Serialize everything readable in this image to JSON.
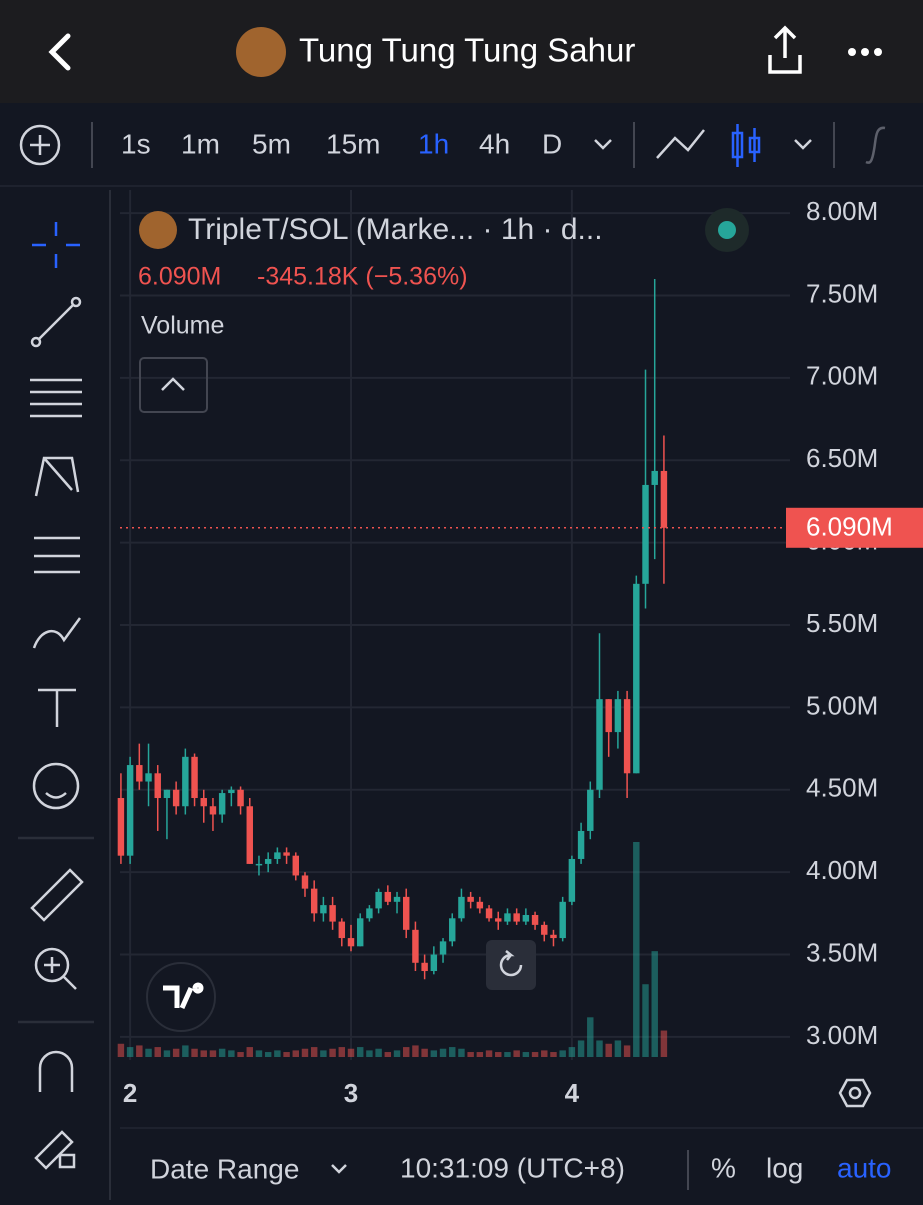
{
  "header": {
    "title": "Tung Tung Tung Sahur"
  },
  "toolbar": {
    "intervals": [
      "1s",
      "1m",
      "5m",
      "15m",
      "1h",
      "4h",
      "D"
    ],
    "active_interval": "1h"
  },
  "chart": {
    "type": "candlestick",
    "legend": "TripleT/SOL (Marke... · 1h · d...",
    "last_price": "6.090M",
    "change": "-345.18K (−5.36%)",
    "volume_label": "Volume",
    "up_color": "#26a69a",
    "down_color": "#ef5350",
    "candles": [
      [
        4.45,
        4.6,
        4.05,
        4.1
      ],
      [
        4.1,
        4.7,
        4.05,
        4.65
      ],
      [
        4.65,
        4.78,
        4.5,
        4.55
      ],
      [
        4.55,
        4.78,
        4.4,
        4.6
      ],
      [
        4.6,
        4.65,
        4.25,
        4.45
      ],
      [
        4.45,
        4.5,
        4.2,
        4.5
      ],
      [
        4.5,
        4.55,
        4.35,
        4.4
      ],
      [
        4.4,
        4.75,
        4.35,
        4.7
      ],
      [
        4.7,
        4.72,
        4.4,
        4.45
      ],
      [
        4.45,
        4.5,
        4.3,
        4.4
      ],
      [
        4.4,
        4.45,
        4.25,
        4.35
      ],
      [
        4.35,
        4.5,
        4.3,
        4.48
      ],
      [
        4.48,
        4.52,
        4.4,
        4.5
      ],
      [
        4.5,
        4.52,
        4.35,
        4.4
      ],
      [
        4.4,
        4.45,
        4.05,
        4.05
      ],
      [
        4.05,
        4.1,
        3.98,
        4.05
      ],
      [
        4.05,
        4.12,
        4.0,
        4.08
      ],
      [
        4.08,
        4.15,
        4.05,
        4.12
      ],
      [
        4.12,
        4.15,
        4.05,
        4.1
      ],
      [
        4.1,
        4.12,
        3.95,
        3.98
      ],
      [
        3.98,
        4.0,
        3.85,
        3.9
      ],
      [
        3.9,
        3.95,
        3.7,
        3.75
      ],
      [
        3.75,
        3.85,
        3.7,
        3.8
      ],
      [
        3.8,
        3.85,
        3.65,
        3.7
      ],
      [
        3.7,
        3.72,
        3.55,
        3.6
      ],
      [
        3.6,
        3.68,
        3.52,
        3.55
      ],
      [
        3.55,
        3.75,
        3.55,
        3.72
      ],
      [
        3.72,
        3.8,
        3.7,
        3.78
      ],
      [
        3.78,
        3.9,
        3.75,
        3.88
      ],
      [
        3.88,
        3.92,
        3.8,
        3.82
      ],
      [
        3.82,
        3.88,
        3.75,
        3.85
      ],
      [
        3.85,
        3.9,
        3.6,
        3.65
      ],
      [
        3.65,
        3.7,
        3.4,
        3.45
      ],
      [
        3.45,
        3.5,
        3.35,
        3.4
      ],
      [
        3.4,
        3.55,
        3.38,
        3.5
      ],
      [
        3.5,
        3.6,
        3.45,
        3.58
      ],
      [
        3.58,
        3.75,
        3.55,
        3.72
      ],
      [
        3.72,
        3.9,
        3.7,
        3.85
      ],
      [
        3.85,
        3.88,
        3.78,
        3.82
      ],
      [
        3.82,
        3.85,
        3.75,
        3.78
      ],
      [
        3.78,
        3.8,
        3.7,
        3.72
      ],
      [
        3.72,
        3.76,
        3.65,
        3.7
      ],
      [
        3.7,
        3.78,
        3.68,
        3.75
      ],
      [
        3.75,
        3.78,
        3.68,
        3.7
      ],
      [
        3.7,
        3.78,
        3.68,
        3.74
      ],
      [
        3.74,
        3.76,
        3.65,
        3.68
      ],
      [
        3.68,
        3.7,
        3.58,
        3.62
      ],
      [
        3.62,
        3.65,
        3.55,
        3.6
      ],
      [
        3.6,
        3.85,
        3.58,
        3.82
      ],
      [
        3.82,
        4.1,
        3.8,
        4.08
      ],
      [
        4.08,
        4.3,
        4.05,
        4.25
      ],
      [
        4.25,
        4.55,
        4.2,
        4.5
      ],
      [
        4.5,
        5.45,
        4.45,
        5.05
      ],
      [
        5.05,
        5.05,
        4.7,
        4.85
      ],
      [
        4.85,
        5.1,
        4.75,
        5.05
      ],
      [
        5.05,
        5.1,
        4.45,
        4.6
      ],
      [
        4.6,
        5.8,
        4.6,
        5.75
      ],
      [
        5.75,
        7.05,
        5.6,
        6.35
      ],
      [
        6.35,
        7.6,
        5.9,
        6.435
      ],
      [
        6.435,
        6.65,
        5.75,
        6.09
      ]
    ],
    "volumes": [
      8,
      6,
      7,
      5,
      6,
      4,
      5,
      7,
      5,
      4,
      4,
      5,
      4,
      3,
      6,
      4,
      3,
      4,
      3,
      4,
      5,
      6,
      4,
      5,
      6,
      5,
      6,
      4,
      5,
      3,
      4,
      6,
      7,
      5,
      4,
      5,
      6,
      5,
      3,
      3,
      4,
      3,
      3,
      4,
      3,
      3,
      4,
      3,
      4,
      6,
      10,
      24,
      10,
      8,
      10,
      7,
      130,
      44,
      64,
      16
    ],
    "ylim": [
      2.86,
      8.14
    ],
    "yticks": [
      {
        "value": 3,
        "label": "3.00M"
      },
      {
        "value": 3.5,
        "label": "3.50M"
      },
      {
        "value": 4,
        "label": "4.00M"
      },
      {
        "value": 4.5,
        "label": "4.50M"
      },
      {
        "value": 5,
        "label": "5.00M"
      },
      {
        "value": 5.5,
        "label": "5.50M"
      },
      {
        "value": 6,
        "label": "6.00M"
      },
      {
        "value": 6.5,
        "label": "6.50M"
      },
      {
        "value": 7,
        "label": "7.00M"
      },
      {
        "value": 7.5,
        "label": "7.50M"
      },
      {
        "value": 8,
        "label": "8.00M"
      }
    ],
    "xlim": [
      -0.1,
      72.7
    ],
    "xticks": [
      {
        "value": 1,
        "label": "2"
      },
      {
        "value": 25,
        "label": "3"
      },
      {
        "value": 49,
        "label": "4"
      }
    ],
    "price_line": {
      "value": 6.09,
      "label": "6.090M"
    }
  },
  "bottom": {
    "date_range": "Date Range",
    "time": "10:31:09 (UTC+8)",
    "percent": "%",
    "log": "log",
    "auto": "auto"
  }
}
